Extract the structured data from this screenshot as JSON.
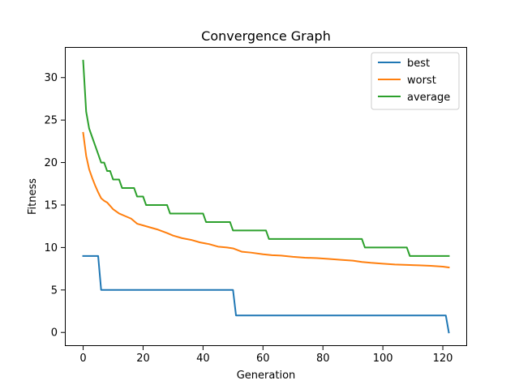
{
  "chart_data": {
    "type": "line",
    "title": "Convergence Graph",
    "xlabel": "Generation",
    "ylabel": "Fitness",
    "xlim": [
      -6.1,
      128.1
    ],
    "ylim": [
      -1.6,
      33.6
    ],
    "xticks": [
      0,
      20,
      40,
      60,
      80,
      100,
      120
    ],
    "yticks": [
      0,
      5,
      10,
      15,
      20,
      25,
      30
    ],
    "grid": false,
    "legend_position": "upper right",
    "colors": {
      "best": "#1f77b4",
      "worst": "#ff7f0e",
      "average": "#2ca02c"
    },
    "series": [
      {
        "name": "best",
        "color": "#1f77b4",
        "step": true,
        "x": [
          0,
          5,
          6,
          50,
          51,
          121,
          122
        ],
        "y": [
          9,
          9,
          5,
          5,
          2,
          2,
          0
        ]
      },
      {
        "name": "worst",
        "color": "#ff7f0e",
        "step": false,
        "x": [
          0,
          1,
          2,
          3,
          4,
          5,
          6,
          7,
          8,
          10,
          12,
          14,
          16,
          18,
          20,
          22,
          25,
          28,
          30,
          33,
          36,
          39,
          42,
          45,
          48,
          50,
          53,
          56,
          60,
          63,
          66,
          70,
          74,
          78,
          82,
          86,
          90,
          93,
          96,
          100,
          104,
          108,
          112,
          116,
          120,
          122
        ],
        "y": [
          23.5,
          20.8,
          19.2,
          18.2,
          17.3,
          16.5,
          15.8,
          15.5,
          15.3,
          14.5,
          14.0,
          13.7,
          13.4,
          12.8,
          12.6,
          12.4,
          12.1,
          11.7,
          11.4,
          11.1,
          10.9,
          10.6,
          10.4,
          10.1,
          10.0,
          9.9,
          9.5,
          9.4,
          9.2,
          9.1,
          9.05,
          8.9,
          8.8,
          8.75,
          8.65,
          8.55,
          8.45,
          8.3,
          8.2,
          8.1,
          8.0,
          7.95,
          7.9,
          7.85,
          7.75,
          7.65
        ]
      },
      {
        "name": "average",
        "color": "#2ca02c",
        "step": true,
        "x": [
          0,
          1,
          2,
          3,
          4,
          5,
          6,
          7,
          8,
          9,
          10,
          12,
          13,
          17,
          18,
          20,
          21,
          28,
          29,
          40,
          41,
          49,
          50,
          61,
          62,
          93,
          94,
          108,
          109,
          122
        ],
        "y": [
          32,
          26,
          24,
          23,
          22,
          21,
          20,
          20,
          19,
          19,
          18,
          18,
          17,
          17,
          16,
          16,
          15,
          15,
          14,
          14,
          13,
          13,
          12,
          12,
          11,
          11,
          10,
          10,
          9,
          9
        ]
      }
    ]
  }
}
